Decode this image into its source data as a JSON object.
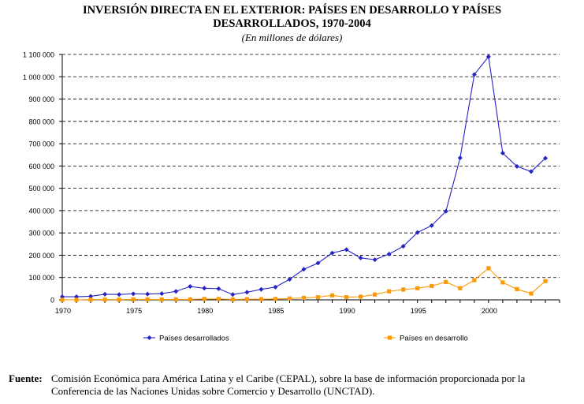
{
  "header": {
    "title_line1": "INVERSIÓN DIRECTA EN EL EXTERIOR: PAÍSES EN DESARROLLO Y PAÍSES",
    "title_line2": "DESARROLLADOS, 1970-2004",
    "subtitle": "(En millones de dólares)"
  },
  "source": {
    "label": "Fuente:",
    "text": "Comisión Económica para América Latina y el Caribe (CEPAL), sobre la base de información proporcionada por la Conferencia de las Naciones Unidas sobre Comercio y Desarrollo (UNCTAD)."
  },
  "chart_data": {
    "type": "line",
    "title": "INVERSIÓN DIRECTA EN EL EXTERIOR: PAÍSES EN DESARROLLO Y PAÍSES DESARROLLADOS, 1970-2004",
    "subtitle": "(En millones de dólares)",
    "xlabel": "",
    "ylabel": "",
    "x": [
      1970,
      1971,
      1972,
      1973,
      1974,
      1975,
      1976,
      1977,
      1978,
      1979,
      1980,
      1981,
      1982,
      1983,
      1984,
      1985,
      1986,
      1987,
      1988,
      1989,
      1990,
      1991,
      1992,
      1993,
      1994,
      1995,
      1996,
      1997,
      1998,
      1999,
      2000,
      2001,
      2002,
      2003,
      2004
    ],
    "xlim": [
      1970,
      2005
    ],
    "x_tick_labels": [
      "1970",
      "1975",
      "1980",
      "1985",
      "1990",
      "1995",
      "2000"
    ],
    "ylim": [
      0,
      1100000
    ],
    "y_tick_labels": [
      "0",
      "100 000",
      "200 000",
      "300 000",
      "400 000",
      "500 000",
      "600 000",
      "700 000",
      "800 000",
      "900 000",
      "1 000 000",
      "1 100 000"
    ],
    "grid": "horizontal dashed",
    "legend_position": "bottom",
    "series": [
      {
        "name": "Países desarrollados",
        "color": "#2323c8",
        "marker": "diamond",
        "values": [
          14000,
          14000,
          16000,
          25000,
          24000,
          27000,
          26000,
          28000,
          38000,
          60000,
          52000,
          50000,
          24000,
          34000,
          47000,
          57000,
          92000,
          137000,
          165000,
          210000,
          225000,
          188000,
          180000,
          205000,
          240000,
          302000,
          333000,
          397000,
          636000,
          1010000,
          1090000,
          658000,
          598000,
          575000,
          635000
        ]
      },
      {
        "name": "Países en desarrollo",
        "color": "#ff9900",
        "marker": "square",
        "values": [
          0,
          0,
          1000,
          1000,
          1000,
          2000,
          2000,
          1500,
          2000,
          2000,
          4000,
          4000,
          2000,
          3000,
          3000,
          4000,
          6000,
          9000,
          12000,
          20000,
          12000,
          14000,
          24000,
          38000,
          46000,
          52000,
          62000,
          80000,
          52000,
          88000,
          142000,
          78000,
          48000,
          28000,
          84000
        ]
      }
    ]
  }
}
